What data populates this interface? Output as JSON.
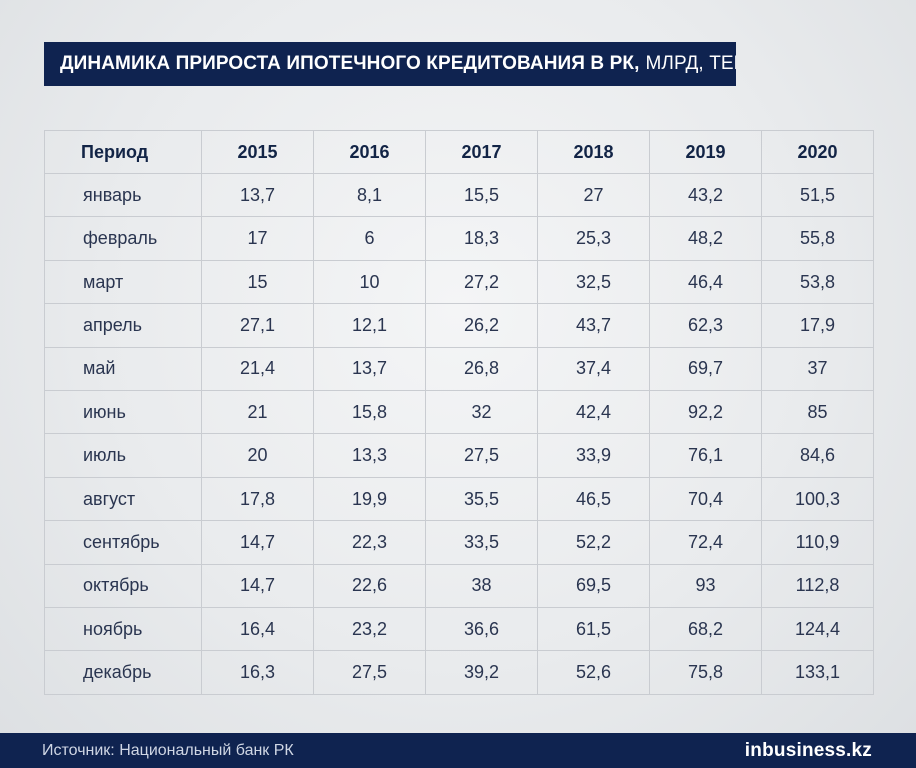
{
  "title": {
    "bold": "ДИНАМИКА ПРИРОСТА ИПОТЕЧНОГО КРЕДИТОВАНИЯ В РК,",
    "light": "МЛРД, ТЕНГЕ"
  },
  "footer": {
    "source": "Источник: Национальный банк РК",
    "brand": "inbusiness.kz"
  },
  "chart_data": {
    "type": "table",
    "header": [
      "Период",
      "2015",
      "2016",
      "2017",
      "2018",
      "2019",
      "2020"
    ],
    "rows": [
      [
        "январь",
        "13,7",
        "8,1",
        "15,5",
        "27",
        "43,2",
        "51,5"
      ],
      [
        "февраль",
        "17",
        "6",
        "18,3",
        "25,3",
        "48,2",
        "55,8"
      ],
      [
        "март",
        "15",
        "10",
        "27,2",
        "32,5",
        "46,4",
        "53,8"
      ],
      [
        "апрель",
        "27,1",
        "12,1",
        "26,2",
        "43,7",
        "62,3",
        "17,9"
      ],
      [
        "май",
        "21,4",
        "13,7",
        "26,8",
        "37,4",
        "69,7",
        "37"
      ],
      [
        "июнь",
        "21",
        "15,8",
        "32",
        "42,4",
        "92,2",
        "85"
      ],
      [
        "июль",
        "20",
        "13,3",
        "27,5",
        "33,9",
        "76,1",
        "84,6"
      ],
      [
        "август",
        "17,8",
        "19,9",
        "35,5",
        "46,5",
        "70,4",
        "100,3"
      ],
      [
        "сентябрь",
        "14,7",
        "22,3",
        "33,5",
        "52,2",
        "72,4",
        "110,9"
      ],
      [
        "октябрь",
        "14,7",
        "22,6",
        "38",
        "69,5",
        "93",
        "112,8"
      ],
      [
        "ноябрь",
        "16,4",
        "23,2",
        "36,6",
        "61,5",
        "68,2",
        "124,4"
      ],
      [
        "декабрь",
        "16,3",
        "27,5",
        "39,2",
        "52,6",
        "75,8",
        "133,1"
      ]
    ]
  }
}
